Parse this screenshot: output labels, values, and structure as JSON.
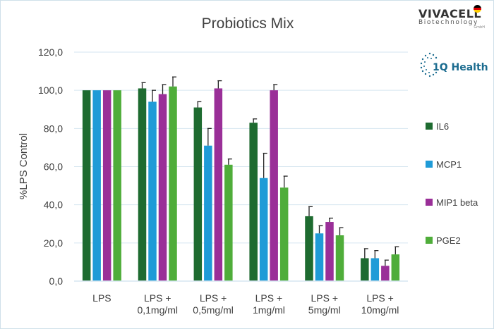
{
  "chart_data": {
    "type": "bar",
    "title": "Probiotics Mix",
    "ylabel": "%LPS Control",
    "xlabel": "",
    "ylim": [
      0,
      120
    ],
    "yticks": [
      "0,0",
      "20,0",
      "40,0",
      "60,0",
      "80,0",
      "100,0",
      "120,0"
    ],
    "categories": [
      [
        "LPS"
      ],
      [
        "LPS +",
        "0,1mg/ml"
      ],
      [
        "LPS +",
        "0,5mg/ml"
      ],
      [
        "LPS +",
        "1mg/ml"
      ],
      [
        "LPS +",
        "5mg/ml"
      ],
      [
        "LPS +",
        "10mg/ml"
      ]
    ],
    "series": [
      {
        "name": "IL6",
        "color": "#1e6b30",
        "values": [
          100,
          101,
          91,
          83,
          34,
          12
        ],
        "errors": [
          0,
          3,
          3,
          2,
          5,
          5
        ]
      },
      {
        "name": "MCP1",
        "color": "#1f9bd7",
        "values": [
          100,
          94,
          71,
          54,
          25,
          12
        ],
        "errors": [
          0,
          6,
          9,
          13,
          4,
          4
        ]
      },
      {
        "name": "MIP1 beta",
        "color": "#9a2f98",
        "values": [
          100,
          98,
          101,
          100,
          31,
          8
        ],
        "errors": [
          0,
          5,
          4,
          3,
          2,
          3
        ]
      },
      {
        "name": "PGE2",
        "color": "#4fad3a",
        "values": [
          100,
          102,
          61,
          49,
          24,
          14
        ],
        "errors": [
          0,
          5,
          3,
          6,
          4,
          4
        ]
      }
    ],
    "legend": "right"
  },
  "logos": {
    "vivacell_name": "VIVACELL",
    "vivacell_sub": "Biotechnology",
    "vivacell_gmbh": "GmbH",
    "iq_health": "1Q Health"
  },
  "colors": {
    "axis_text": "#404040",
    "grid": "#d6e6f0",
    "flag_black": "#000000",
    "flag_red": "#dd0000",
    "flag_gold": "#ffce00"
  }
}
